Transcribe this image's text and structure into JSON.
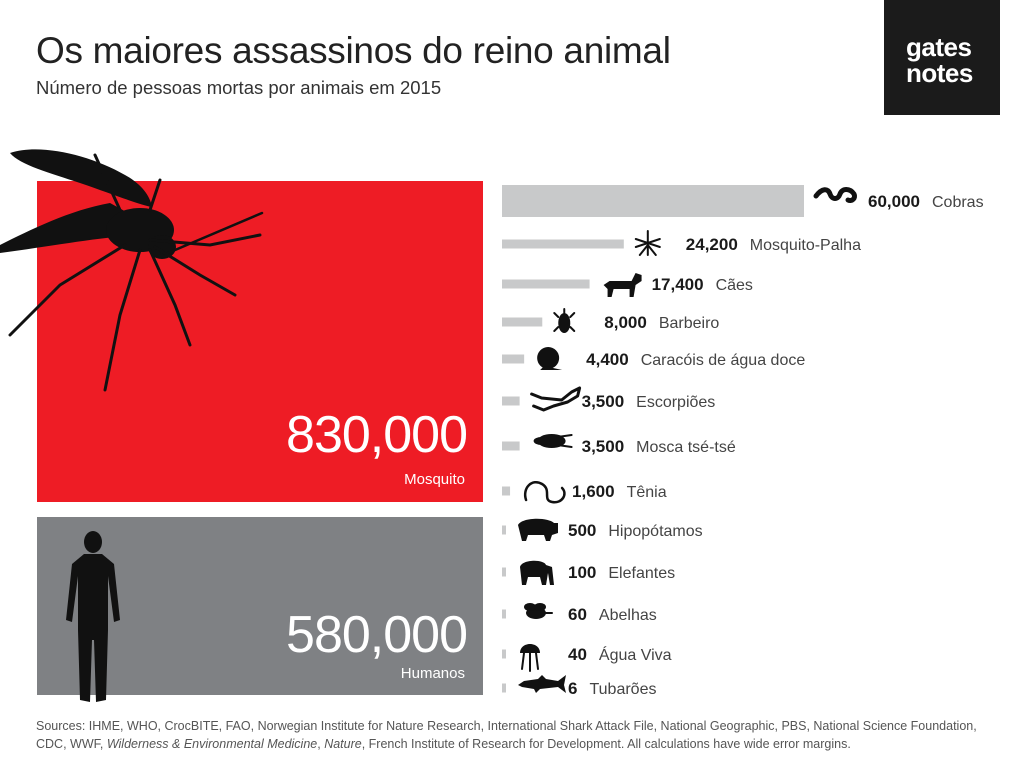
{
  "header": {
    "title": "Os maiores assassinos do reino animal",
    "subtitle": "Número de pessoas mortas por animais em 2015"
  },
  "logo": {
    "line1": "gates",
    "line2": "notes"
  },
  "colors": {
    "mosquito": "#ee1c25",
    "humans": "#7f8184",
    "bars": "#c8c9ca",
    "logo_bg": "#1b1b1b"
  },
  "chart_data": {
    "type": "bar",
    "title": "Os maiores assassinos do reino animal",
    "subtitle": "Número de pessoas mortas por animais em 2015",
    "highlight": [
      {
        "category": "Mosquito",
        "value": 830000,
        "label": "830,000"
      },
      {
        "category": "Humanos",
        "value": 580000,
        "label": "580,000"
      }
    ],
    "categories": [
      "Cobras",
      "Mosquito-Palha",
      "Cães",
      "Barbeiro",
      "Caracóis de água doce",
      "Escorpiões",
      "Mosca tsé-tsé",
      "Tênia",
      "Hipopótamos",
      "Elefantes",
      "Abelhas",
      "Água Viva",
      "Tubarões"
    ],
    "values": [
      60000,
      24200,
      17400,
      8000,
      4400,
      3500,
      3500,
      1600,
      500,
      100,
      60,
      40,
      6
    ],
    "value_labels": [
      "60,000",
      "24,200",
      "17,400",
      "8,000",
      "4,400",
      "3,500",
      "3,500",
      "1,600",
      "500",
      "100",
      "60",
      "40",
      "6"
    ],
    "icons": [
      "snake-icon",
      "sandfly-icon",
      "dog-icon",
      "kissing-bug-icon",
      "snail-icon",
      "scorpion-icon",
      "tsetse-fly-icon",
      "tapeworm-icon",
      "hippo-icon",
      "elephant-icon",
      "bee-icon",
      "jellyfish-icon",
      "shark-icon"
    ]
  },
  "sources": {
    "prefix": "Sources: IHME, WHO, CrocBITE, FAO, Norwegian Institute for Nature Research, International Shark Attack File, National Geographic, PBS, National Science Foundation, CDC, WWF, ",
    "italic1": "Wilderness & Environmental Medicine",
    "sep": ", ",
    "italic2": "Nature",
    "suffix": ", French Institute of Research for Development. All calculations have wide error margins."
  }
}
